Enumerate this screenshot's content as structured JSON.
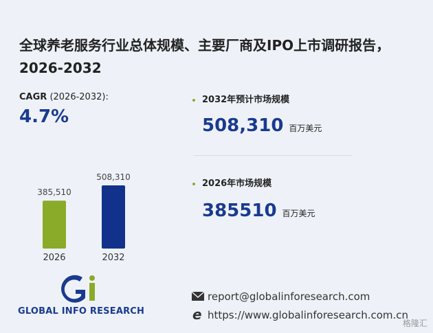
{
  "title": "全球养老服务行业总体规模、主要厂商及IPO上市调研报告，2026-2032",
  "cagr": {
    "label": "CAGR",
    "period": "(2026-2032):",
    "value": "4.7%"
  },
  "stats": [
    {
      "label": "2032年预计市场规模",
      "value": "508,310",
      "unit": "百万美元"
    },
    {
      "label": "2026年市场规模",
      "value": "385510",
      "unit": "百万美元"
    }
  ],
  "chart_data": {
    "type": "bar",
    "categories": [
      "2026",
      "2032"
    ],
    "values": [
      385510,
      508310
    ],
    "value_labels": [
      "385,510",
      "508,310"
    ],
    "colors": [
      "#8aab2a",
      "#12318a"
    ]
  },
  "logo": "GLOBAL INFO RESEARCH",
  "contacts": {
    "email": "report@globalinforesearch.com",
    "website": "https://www.globalinforesearch.com.cn"
  },
  "watermark": "格隆汇"
}
